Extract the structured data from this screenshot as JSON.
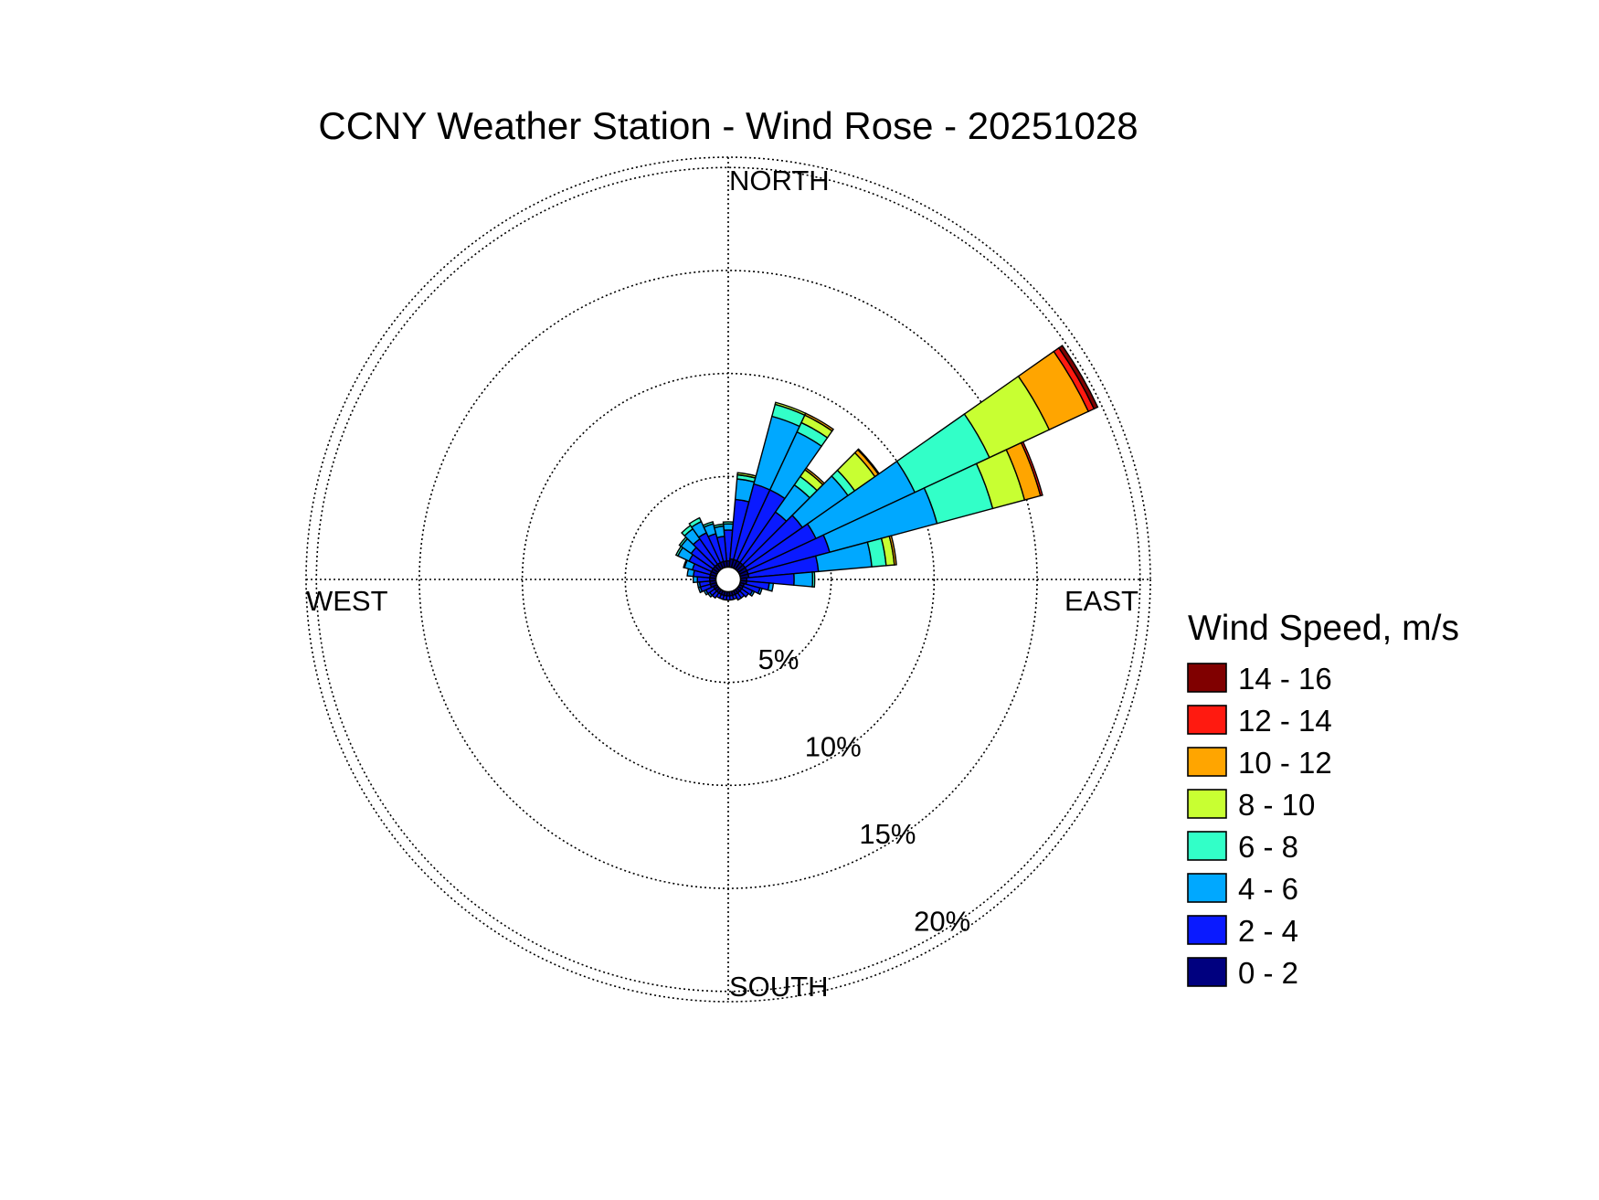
{
  "chart_data": {
    "type": "wind-rose",
    "title": "CCNY Weather Station - Wind Rose - 20251028",
    "directions": {
      "north": "NORTH",
      "east": "EAST",
      "south": "SOUTH",
      "west": "WEST"
    },
    "radial_unit": "%",
    "rings": [
      {
        "value": 5,
        "label": "5%"
      },
      {
        "value": 10,
        "label": "10%"
      },
      {
        "value": 15,
        "label": "15%"
      },
      {
        "value": 20,
        "label": "20%"
      }
    ],
    "rmax": 20.5,
    "calm_radius": 0.6,
    "legend": {
      "title": "Wind Speed, m/s",
      "bins": [
        {
          "label": "14 - 16",
          "color": "#800000"
        },
        {
          "label": "12 - 14",
          "color": "#ff1a10"
        },
        {
          "label": "10 - 12",
          "color": "#ffa500"
        },
        {
          "label": "8 - 10",
          "color": "#c8ff32"
        },
        {
          "label": "6 - 8",
          "color": "#32ffc8"
        },
        {
          "label": "4 - 6",
          "color": "#00a8ff"
        },
        {
          "label": "2 - 4",
          "color": "#0a1aff"
        },
        {
          "label": "0 - 2",
          "color": "#00007f"
        }
      ]
    },
    "sector_width_deg": 10,
    "speed_bins_low_to_high": [
      "0 - 2",
      "2 - 4",
      "4 - 6",
      "6 - 8",
      "8 - 10",
      "10 - 12",
      "12 - 14",
      "14 - 16"
    ],
    "sectors": [
      {
        "direction_deg": 0,
        "values": [
          0.3,
          1.5,
          0.3,
          0.1,
          0,
          0,
          0,
          0
        ]
      },
      {
        "direction_deg": 10,
        "values": [
          0.4,
          2.9,
          1.0,
          0.2,
          0.1,
          0,
          0,
          0
        ]
      },
      {
        "direction_deg": 20,
        "values": [
          0.4,
          3.8,
          3.4,
          0.6,
          0.1,
          0,
          0,
          0
        ]
      },
      {
        "direction_deg": 30,
        "values": [
          0.4,
          3.8,
          3.1,
          0.5,
          0.4,
          0.1,
          0,
          0
        ]
      },
      {
        "direction_deg": 40,
        "values": [
          0.4,
          3.0,
          1.6,
          0.5,
          0.4,
          0.1,
          0,
          0
        ]
      },
      {
        "direction_deg": 50,
        "values": [
          0.4,
          3.4,
          2.7,
          0.4,
          1.2,
          0.2,
          0.05,
          0
        ]
      },
      {
        "direction_deg": 60,
        "values": [
          0.4,
          3.7,
          5.3,
          4.0,
          3.2,
          2.1,
          0.3,
          0.2
        ]
      },
      {
        "direction_deg": 70,
        "values": [
          0.4,
          4.1,
          5.4,
          2.8,
          1.6,
          0.8,
          0.1,
          0
        ]
      },
      {
        "direction_deg": 80,
        "values": [
          0.4,
          3.4,
          2.6,
          0.7,
          0.4,
          0.1,
          0,
          0
        ]
      },
      {
        "direction_deg": 90,
        "values": [
          0.3,
          2.3,
          0.9,
          0.1,
          0,
          0,
          0,
          0
        ]
      },
      {
        "direction_deg": 100,
        "values": [
          0.3,
          1.1,
          0.2,
          0,
          0,
          0,
          0,
          0
        ]
      },
      {
        "direction_deg": 110,
        "values": [
          0.2,
          0.8,
          0.1,
          0,
          0,
          0,
          0,
          0
        ]
      },
      {
        "direction_deg": 120,
        "values": [
          0.2,
          0.5,
          0.1,
          0,
          0,
          0,
          0,
          0
        ]
      },
      {
        "direction_deg": 130,
        "values": [
          0.2,
          0.4,
          0,
          0,
          0,
          0,
          0,
          0
        ]
      },
      {
        "direction_deg": 140,
        "values": [
          0.2,
          0.3,
          0,
          0,
          0,
          0,
          0,
          0
        ]
      },
      {
        "direction_deg": 150,
        "values": [
          0.2,
          0.3,
          0,
          0,
          0,
          0,
          0,
          0
        ]
      },
      {
        "direction_deg": 160,
        "values": [
          0.2,
          0.2,
          0,
          0,
          0,
          0,
          0,
          0
        ]
      },
      {
        "direction_deg": 170,
        "values": [
          0.2,
          0.2,
          0,
          0,
          0,
          0,
          0,
          0
        ]
      },
      {
        "direction_deg": 180,
        "values": [
          0.2,
          0.2,
          0,
          0,
          0,
          0,
          0,
          0
        ]
      },
      {
        "direction_deg": 190,
        "values": [
          0.2,
          0.2,
          0,
          0,
          0,
          0,
          0,
          0
        ]
      },
      {
        "direction_deg": 200,
        "values": [
          0.2,
          0.2,
          0,
          0,
          0,
          0,
          0,
          0
        ]
      },
      {
        "direction_deg": 210,
        "values": [
          0.2,
          0.2,
          0,
          0,
          0,
          0,
          0,
          0
        ]
      },
      {
        "direction_deg": 220,
        "values": [
          0.2,
          0.3,
          0,
          0,
          0,
          0,
          0,
          0
        ]
      },
      {
        "direction_deg": 230,
        "values": [
          0.2,
          0.3,
          0.1,
          0,
          0,
          0,
          0,
          0
        ]
      },
      {
        "direction_deg": 240,
        "values": [
          0.2,
          0.4,
          0.1,
          0,
          0,
          0,
          0,
          0
        ]
      },
      {
        "direction_deg": 250,
        "values": [
          0.3,
          0.5,
          0.1,
          0,
          0,
          0,
          0,
          0
        ]
      },
      {
        "direction_deg": 260,
        "values": [
          0.3,
          0.5,
          0.1,
          0,
          0,
          0,
          0,
          0
        ]
      },
      {
        "direction_deg": 270,
        "values": [
          0.3,
          0.6,
          0.2,
          0,
          0,
          0,
          0,
          0
        ]
      },
      {
        "direction_deg": 280,
        "values": [
          0.3,
          0.8,
          0.3,
          0,
          0,
          0,
          0,
          0
        ]
      },
      {
        "direction_deg": 290,
        "values": [
          0.3,
          0.9,
          0.4,
          0.05,
          0,
          0,
          0,
          0
        ]
      },
      {
        "direction_deg": 300,
        "values": [
          0.3,
          1.2,
          0.6,
          0.1,
          0,
          0,
          0,
          0
        ]
      },
      {
        "direction_deg": 310,
        "values": [
          0.3,
          1.3,
          0.6,
          0.1,
          0,
          0,
          0,
          0
        ]
      },
      {
        "direction_deg": 320,
        "values": [
          0.3,
          1.5,
          0.6,
          0.2,
          0,
          0,
          0,
          0
        ]
      },
      {
        "direction_deg": 330,
        "values": [
          0.3,
          1.6,
          0.6,
          0.2,
          0,
          0,
          0,
          0
        ]
      },
      {
        "direction_deg": 340,
        "values": [
          0.3,
          1.4,
          0.5,
          0.1,
          0,
          0,
          0,
          0
        ]
      },
      {
        "direction_deg": 350,
        "values": [
          0.3,
          1.2,
          0.5,
          0.1,
          0,
          0,
          0,
          0
        ]
      }
    ],
    "grid": true,
    "legend_placement": "right"
  }
}
